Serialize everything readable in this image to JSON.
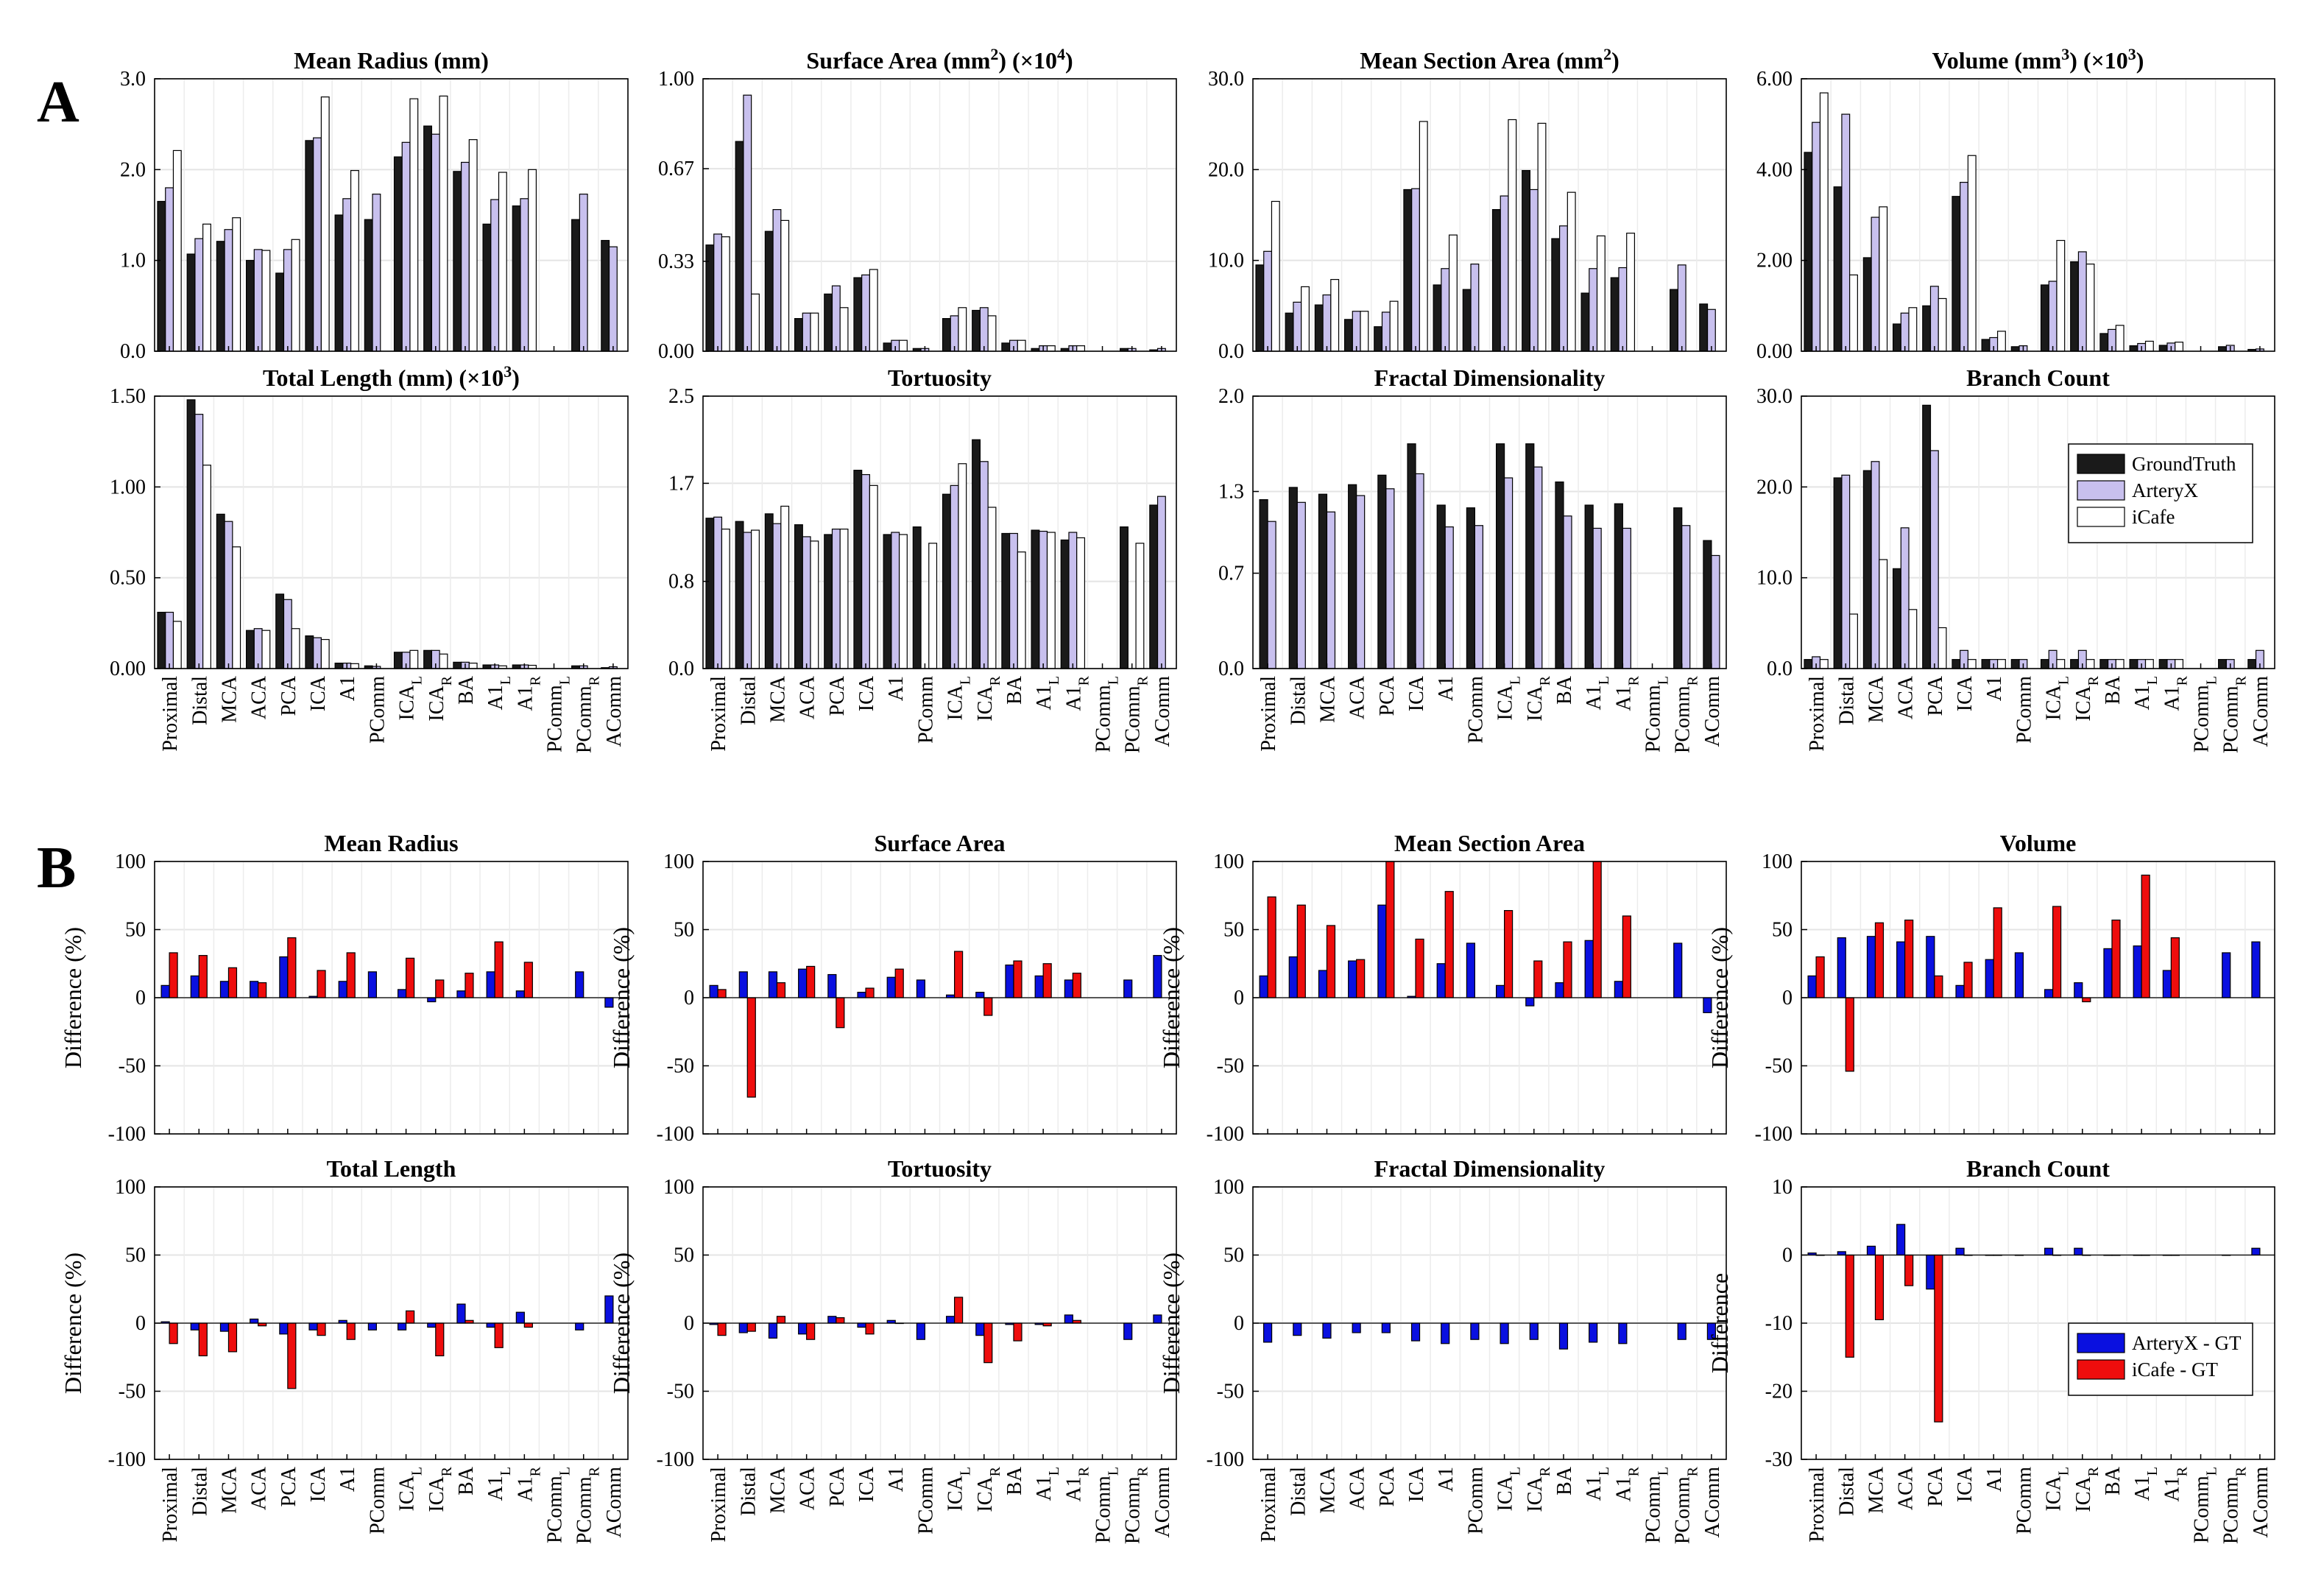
{
  "categories": [
    "Proximal",
    "Distal",
    "MCA",
    "ACA",
    "PCA",
    "ICA",
    "A1",
    "PComm",
    "ICA_L",
    "ICA_R",
    "BA",
    "A1_L",
    "A1_R",
    "PComm_L",
    "PComm_R",
    "AComm"
  ],
  "panel_labels": [
    "A",
    "B"
  ],
  "legends": {
    "A": {
      "entries": [
        "GroundTruth",
        "ArteryX",
        "iCafe"
      ],
      "colors": [
        "#1a1a1a",
        "#c8c0ee",
        "#ffffff"
      ]
    },
    "B": {
      "entries": [
        "ArteryX - GT",
        "iCafe - GT"
      ],
      "colors": [
        "#0a10e0",
        "#ee0d0d"
      ]
    }
  },
  "chart_data": [
    {
      "type": "bar",
      "title": "Mean Radius (mm)",
      "ylim": [
        0,
        3
      ],
      "yticks": [
        "0.0",
        "1.0",
        "2.0",
        "3.0"
      ],
      "ylabel": "",
      "series": [
        {
          "name": "GroundTruth",
          "values": [
            1.65,
            1.07,
            1.21,
            1.0,
            0.86,
            2.32,
            1.5,
            1.45,
            2.14,
            2.48,
            1.98,
            1.4,
            1.6,
            null,
            1.45,
            1.22
          ]
        },
        {
          "name": "ArteryX",
          "values": [
            1.8,
            1.24,
            1.34,
            1.12,
            1.12,
            2.35,
            1.68,
            1.73,
            2.3,
            2.39,
            2.08,
            1.67,
            1.68,
            null,
            1.73,
            1.15
          ]
        },
        {
          "name": "iCafe",
          "values": [
            2.21,
            1.4,
            1.47,
            1.11,
            1.23,
            2.8,
            1.99,
            null,
            2.78,
            2.81,
            2.33,
            1.97,
            2.0,
            null,
            null,
            null
          ]
        }
      ]
    },
    {
      "type": "bar",
      "title": "Surface Area (mm²) (×10⁴)",
      "ylim": [
        0,
        1
      ],
      "yticks": [
        "0.00",
        "0.33",
        "0.67",
        "1.00"
      ],
      "ylabel": "",
      "series": [
        {
          "name": "GroundTruth",
          "values": [
            0.39,
            0.77,
            0.44,
            0.12,
            0.21,
            0.27,
            0.03,
            0.01,
            0.12,
            0.15,
            0.03,
            0.01,
            0.01,
            null,
            0.01,
            0.005
          ]
        },
        {
          "name": "ArteryX",
          "values": [
            0.43,
            0.94,
            0.52,
            0.14,
            0.24,
            0.28,
            0.04,
            0.01,
            0.13,
            0.16,
            0.04,
            0.02,
            0.02,
            null,
            0.01,
            0.01
          ]
        },
        {
          "name": "iCafe",
          "values": [
            0.42,
            0.21,
            0.48,
            0.14,
            0.16,
            0.3,
            0.04,
            null,
            0.16,
            0.13,
            0.04,
            0.02,
            0.02,
            null,
            null,
            null
          ]
        }
      ]
    },
    {
      "type": "bar",
      "title": "Mean Section Area (mm²)",
      "ylim": [
        0,
        30
      ],
      "yticks": [
        "0.0",
        "10.0",
        "20.0",
        "30.0"
      ],
      "ylabel": "",
      "series": [
        {
          "name": "GroundTruth",
          "values": [
            9.5,
            4.2,
            5.1,
            3.5,
            2.7,
            17.8,
            7.3,
            6.8,
            15.6,
            19.9,
            12.4,
            6.4,
            8.1,
            null,
            6.8,
            5.2
          ]
        },
        {
          "name": "ArteryX",
          "values": [
            11.0,
            5.4,
            6.2,
            4.4,
            4.3,
            17.9,
            9.1,
            9.6,
            17.1,
            17.8,
            13.8,
            9.1,
            9.2,
            null,
            9.5,
            4.6
          ]
        },
        {
          "name": "iCafe",
          "values": [
            16.5,
            7.1,
            7.9,
            4.4,
            5.5,
            25.3,
            12.8,
            null,
            25.5,
            25.1,
            17.5,
            12.7,
            13.0,
            null,
            null,
            null
          ]
        }
      ]
    },
    {
      "type": "bar",
      "title": "Volume (mm³) (×10³)",
      "ylim": [
        0,
        6
      ],
      "yticks": [
        "0.00",
        "2.00",
        "4.00",
        "6.00"
      ],
      "ylabel": "",
      "series": [
        {
          "name": "GroundTruth",
          "values": [
            4.38,
            3.62,
            2.06,
            0.6,
            1.0,
            3.41,
            0.26,
            0.1,
            1.46,
            1.97,
            0.39,
            0.12,
            0.13,
            null,
            0.1,
            0.04
          ]
        },
        {
          "name": "ArteryX",
          "values": [
            5.04,
            5.22,
            2.95,
            0.84,
            1.43,
            3.72,
            0.3,
            0.12,
            1.54,
            2.19,
            0.48,
            0.17,
            0.18,
            null,
            0.13,
            0.05
          ]
        },
        {
          "name": "iCafe",
          "values": [
            5.69,
            1.68,
            3.18,
            0.96,
            1.16,
            4.31,
            0.44,
            null,
            2.44,
            1.92,
            0.57,
            0.22,
            0.2,
            null,
            null,
            null
          ]
        }
      ]
    },
    {
      "type": "bar",
      "title": "Total Length (mm) (×10³)",
      "ylim": [
        0,
        1.5
      ],
      "yticks": [
        "0.00",
        "0.50",
        "1.00",
        "1.50"
      ],
      "ylabel": "",
      "series": [
        {
          "name": "GroundTruth",
          "values": [
            0.31,
            1.48,
            0.85,
            0.21,
            0.41,
            0.18,
            0.03,
            0.015,
            0.09,
            0.1,
            0.035,
            0.02,
            0.02,
            null,
            0.015,
            0.005
          ]
        },
        {
          "name": "ArteryX",
          "values": [
            0.31,
            1.4,
            0.81,
            0.22,
            0.38,
            0.17,
            0.03,
            0.012,
            0.09,
            0.1,
            0.035,
            0.02,
            0.02,
            null,
            0.015,
            0.01
          ]
        },
        {
          "name": "iCafe",
          "values": [
            0.26,
            1.12,
            0.67,
            0.21,
            0.22,
            0.16,
            0.027,
            null,
            0.1,
            0.08,
            0.03,
            0.015,
            0.018,
            null,
            null,
            null
          ]
        }
      ]
    },
    {
      "type": "bar",
      "title": "Tortuosity",
      "ylim": [
        0,
        2.5
      ],
      "yticks": [
        "0.0",
        "0.8",
        "1.7",
        "2.5"
      ],
      "ylabel": "",
      "series": [
        {
          "name": "GroundTruth",
          "values": [
            1.38,
            1.35,
            1.42,
            1.32,
            1.23,
            1.82,
            1.23,
            1.3,
            1.6,
            2.1,
            1.24,
            1.27,
            1.18,
            null,
            1.3,
            1.5
          ]
        },
        {
          "name": "ArteryX",
          "values": [
            1.39,
            1.25,
            1.33,
            1.21,
            1.28,
            1.78,
            1.25,
            null,
            1.68,
            1.9,
            1.24,
            1.26,
            1.25,
            null,
            null,
            1.58
          ]
        },
        {
          "name": "iCafe",
          "values": [
            1.28,
            1.27,
            1.49,
            1.17,
            1.28,
            1.68,
            1.23,
            1.15,
            1.88,
            1.48,
            1.07,
            1.25,
            1.2,
            null,
            1.15,
            null
          ]
        }
      ]
    },
    {
      "type": "bar",
      "title": "Fractal Dimensionality",
      "ylim": [
        0,
        2
      ],
      "yticks": [
        "0.0",
        "0.7",
        "1.3",
        "2.0"
      ],
      "ylabel": "",
      "series": [
        {
          "name": "GroundTruth",
          "values": [
            1.24,
            1.33,
            1.28,
            1.35,
            1.42,
            1.65,
            1.2,
            1.18,
            1.65,
            1.65,
            1.37,
            1.2,
            1.21,
            null,
            1.18,
            0.94
          ]
        },
        {
          "name": "ArteryX",
          "values": [
            1.08,
            1.22,
            1.15,
            1.27,
            1.32,
            1.43,
            1.04,
            1.05,
            1.4,
            1.48,
            1.12,
            1.03,
            1.03,
            null,
            1.05,
            0.83
          ]
        }
      ]
    },
    {
      "type": "bar",
      "title": "Branch Count",
      "ylim": [
        0,
        30
      ],
      "yticks": [
        "0.0",
        "10.0",
        "20.0",
        "30.0"
      ],
      "ylabel": "",
      "series": [
        {
          "name": "GroundTruth",
          "values": [
            1,
            21,
            21.8,
            11,
            29,
            1,
            1,
            1,
            1,
            1,
            1,
            1,
            1,
            null,
            1,
            1
          ]
        },
        {
          "name": "ArteryX",
          "values": [
            1.3,
            21.3,
            22.8,
            15.5,
            24,
            2,
            1,
            1,
            2,
            2,
            1,
            1,
            1,
            null,
            1,
            2
          ]
        },
        {
          "name": "iCafe",
          "values": [
            1,
            6,
            12,
            6.5,
            4.5,
            1,
            1,
            null,
            1,
            1,
            1,
            1,
            1,
            null,
            null,
            null
          ]
        }
      ]
    },
    {
      "type": "bar",
      "title": "Mean Radius",
      "ylim": [
        -100,
        100
      ],
      "yticks": [
        "-100",
        "-50",
        "0",
        "50",
        "100"
      ],
      "ylabel": "Difference (%)",
      "series": [
        {
          "name": "ArteryX - GT",
          "values": [
            9,
            16,
            12,
            12,
            30,
            1,
            12,
            19,
            6,
            -3,
            5,
            19,
            5,
            null,
            19,
            -7
          ]
        },
        {
          "name": "iCafe - GT",
          "values": [
            33,
            31,
            22,
            11,
            44,
            20,
            33,
            null,
            29,
            13,
            18,
            41,
            26,
            null,
            null,
            null
          ]
        }
      ]
    },
    {
      "type": "bar",
      "title": "Surface Area",
      "ylim": [
        -100,
        100
      ],
      "yticks": [
        "-100",
        "-50",
        "0",
        "50",
        "100"
      ],
      "ylabel": "Difference (%)",
      "series": [
        {
          "name": "ArteryX - GT",
          "values": [
            9,
            19,
            19,
            21,
            17,
            4,
            15,
            13,
            2,
            4,
            24,
            16,
            13,
            null,
            13,
            31
          ]
        },
        {
          "name": "iCafe - GT",
          "values": [
            6,
            -73,
            11,
            23,
            -22,
            7,
            21,
            null,
            34,
            -13,
            27,
            25,
            18,
            null,
            null,
            null
          ]
        }
      ]
    },
    {
      "type": "bar",
      "title": "Mean Section Area",
      "ylim": [
        -100,
        100
      ],
      "yticks": [
        "-100",
        "-50",
        "0",
        "50",
        "100"
      ],
      "ylabel": "Difference (%)",
      "series": [
        {
          "name": "ArteryX - GT",
          "values": [
            16,
            30,
            20,
            27,
            68,
            1,
            25,
            40,
            9,
            -6,
            11,
            42,
            12,
            null,
            40,
            -11
          ]
        },
        {
          "name": "iCafe - GT",
          "values": [
            74,
            68,
            53,
            28,
            100,
            43,
            78,
            null,
            64,
            27,
            41,
            100,
            60,
            null,
            null,
            null
          ]
        }
      ]
    },
    {
      "type": "bar",
      "title": "Volume",
      "ylim": [
        -100,
        100
      ],
      "yticks": [
        "-100",
        "-50",
        "0",
        "50",
        "100"
      ],
      "ylabel": "Difference (%)",
      "series": [
        {
          "name": "ArteryX - GT",
          "values": [
            16,
            44,
            45,
            41,
            45,
            9,
            28,
            33,
            6,
            11,
            36,
            38,
            20,
            null,
            33,
            41
          ]
        },
        {
          "name": "iCafe - GT",
          "values": [
            30,
            -54,
            55,
            57,
            16,
            26,
            66,
            null,
            67,
            -3,
            57,
            90,
            44,
            null,
            null,
            null
          ]
        }
      ]
    },
    {
      "type": "bar",
      "title": "Total Length",
      "ylim": [
        -100,
        100
      ],
      "yticks": [
        "-100",
        "-50",
        "0",
        "50",
        "100"
      ],
      "ylabel": "Difference (%)",
      "series": [
        {
          "name": "ArteryX - GT",
          "values": [
            1,
            -5,
            -6,
            3,
            -8,
            -5,
            2,
            -5,
            -5,
            -3,
            14,
            -3,
            8,
            null,
            -5,
            20
          ]
        },
        {
          "name": "iCafe - GT",
          "values": [
            -15,
            -24,
            -21,
            -2,
            -48,
            -9,
            -12,
            null,
            9,
            -24,
            2,
            -18,
            -3,
            null,
            null,
            null
          ]
        }
      ]
    },
    {
      "type": "bar",
      "title": "Tortuosity",
      "ylim": [
        -100,
        100
      ],
      "yticks": [
        "-100",
        "-50",
        "0",
        "50",
        "100"
      ],
      "ylabel": "Difference (%)",
      "series": [
        {
          "name": "ArteryX - GT",
          "values": [
            -1,
            -7,
            -11,
            -8,
            5,
            -3,
            2,
            -12,
            5,
            -9,
            -1,
            -1,
            6,
            null,
            -12,
            6
          ]
        },
        {
          "name": "iCafe - GT",
          "values": [
            -9,
            -6,
            5,
            -12,
            4,
            -8,
            0,
            null,
            19,
            -29,
            -13,
            -2,
            2,
            null,
            null,
            null
          ]
        }
      ]
    },
    {
      "type": "bar",
      "title": "Fractal Dimensionality",
      "ylim": [
        -100,
        100
      ],
      "yticks": [
        "-100",
        "-50",
        "0",
        "50",
        "100"
      ],
      "ylabel": "Difference (%)",
      "series": [
        {
          "name": "ArteryX - GT",
          "values": [
            -14,
            -9,
            -11,
            -7,
            -7,
            -13,
            -15,
            -12,
            -15,
            -12,
            -19,
            -14,
            -15,
            null,
            -12,
            -12
          ]
        }
      ]
    },
    {
      "type": "bar",
      "title": "Branch Count",
      "ylim": [
        -30,
        10
      ],
      "yticks": [
        "-30",
        "-20",
        "-10",
        "0",
        "10"
      ],
      "ylabel": "Difference",
      "series": [
        {
          "name": "ArteryX - GT",
          "values": [
            0.3,
            0.5,
            1.3,
            4.5,
            -5,
            1,
            0,
            0,
            1,
            1,
            0,
            0,
            0,
            null,
            0,
            1
          ]
        },
        {
          "name": "iCafe - GT",
          "values": [
            0,
            -15,
            -9.5,
            -4.5,
            -24.5,
            0,
            0,
            null,
            0,
            0,
            0,
            0,
            0,
            null,
            null,
            null
          ]
        }
      ]
    }
  ]
}
